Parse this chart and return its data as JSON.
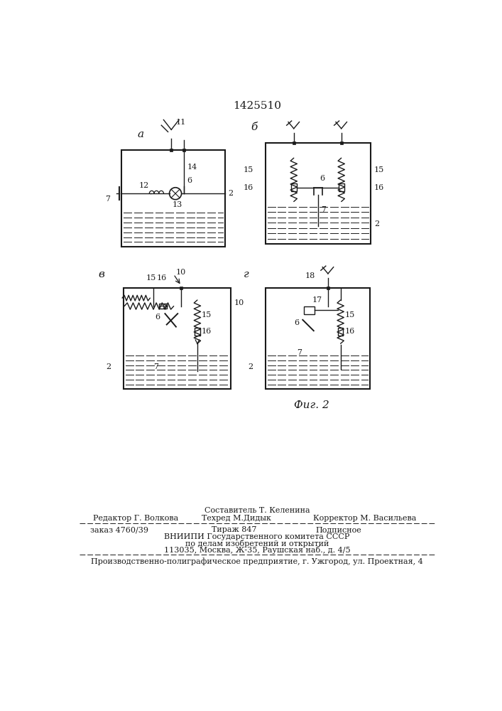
{
  "title": "1425510",
  "fig_caption": "Фиг. 2",
  "bg_color": "#ffffff",
  "line_color": "#1a1a1a",
  "footer_line1_top": "Составитель Т. Келенина",
  "footer_line1_left": "Редактор Г. Волкова",
  "footer_line1_center": "Техред М.Дидык",
  "footer_line1_right": "Корректор М. Васильева",
  "footer_line2_left": "заказ 4760/39",
  "footer_line2_center": "Тираж 847",
  "footer_line2_right": "Подписное",
  "footer_line3": "ВНИИПИ Государственного комитета СССР",
  "footer_line4": "по делам изобретений и открытий",
  "footer_line5": "113035, Москва, Ж-35, Раушская наб., д. 4/5",
  "footer_bottom": "Производственно-полиграфическое предприятие, г. Ужгород, ул. Проектная, 4"
}
